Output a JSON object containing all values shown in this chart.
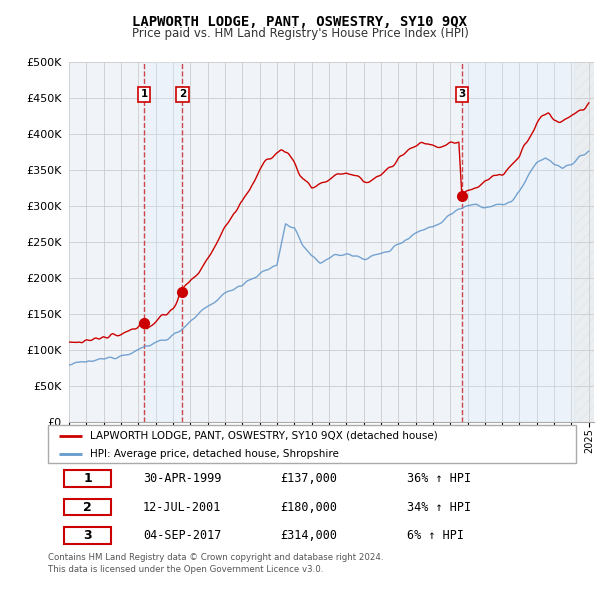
{
  "title": "LAPWORTH LODGE, PANT, OSWESTRY, SY10 9QX",
  "subtitle": "Price paid vs. HM Land Registry's House Price Index (HPI)",
  "legend_label_red": "LAPWORTH LODGE, PANT, OSWESTRY, SY10 9QX (detached house)",
  "legend_label_blue": "HPI: Average price, detached house, Shropshire",
  "footer1": "Contains HM Land Registry data © Crown copyright and database right 2024.",
  "footer2": "This data is licensed under the Open Government Licence v3.0.",
  "transactions": [
    {
      "num": "1",
      "date": "30-APR-1999",
      "price": "£137,000",
      "pct": "36% ↑ HPI",
      "year": 1999.33,
      "value": 137000
    },
    {
      "num": "2",
      "date": "12-JUL-2001",
      "price": "£180,000",
      "pct": "34% ↑ HPI",
      "year": 2001.54,
      "value": 180000
    },
    {
      "num": "3",
      "date": "04-SEP-2017",
      "price": "£314,000",
      "pct": "6% ↑ HPI",
      "year": 2017.67,
      "value": 314000
    }
  ],
  "ylim": [
    0,
    500000
  ],
  "yticks": [
    0,
    50000,
    100000,
    150000,
    200000,
    250000,
    300000,
    350000,
    400000,
    450000,
    500000
  ],
  "xlim_start": 1995,
  "xlim_end": 2025.3,
  "color_red": "#cc0000",
  "color_blue": "#6699cc",
  "color_blue_fill": "#ddeeff",
  "color_grid": "#cccccc",
  "color_vline": "#cc3333",
  "bg_color": "#ffffff",
  "panel_bg": "#f0f4f8"
}
